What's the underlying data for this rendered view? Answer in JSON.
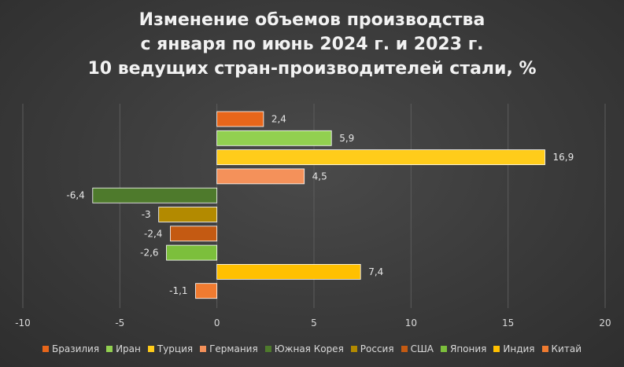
{
  "chart_data": {
    "type": "bar",
    "orientation": "horizontal",
    "title": [
      "Изменение объемов производства",
      "с января по июнь 2024 г. и 2023 г.",
      "10 ведущих стран-производителей стали, %"
    ],
    "xlabel": "",
    "ylabel": "",
    "xlim": [
      -10,
      20
    ],
    "xticks": [
      "-10",
      "-5",
      "0",
      "5",
      "10",
      "15",
      "20"
    ],
    "xtick_values": [
      -10,
      -5,
      0,
      5,
      10,
      15,
      20
    ],
    "grid": true,
    "legend_position": "bottom",
    "series": [
      {
        "name": "Бразилия",
        "value": 2.4,
        "label": "2,4",
        "color": "#e8661a"
      },
      {
        "name": "Иран",
        "value": 5.9,
        "label": "5,9",
        "color": "#92d050"
      },
      {
        "name": "Турция",
        "value": 16.9,
        "label": "16,9",
        "color": "#ffcc1a"
      },
      {
        "name": "Германия",
        "value": 4.5,
        "label": "4,5",
        "color": "#f4915a"
      },
      {
        "name": "Южная Корея",
        "value": -6.4,
        "label": "-6,4",
        "color": "#4e7a2c"
      },
      {
        "name": "Россия",
        "value": -3,
        "label": "-3",
        "color": "#b38a00"
      },
      {
        "name": "США",
        "value": -2.4,
        "label": "-2,4",
        "color": "#c45a12"
      },
      {
        "name": "Япония",
        "value": -2.6,
        "label": "-2,6",
        "color": "#7cbf3c"
      },
      {
        "name": "Индия",
        "value": 7.4,
        "label": "7,4",
        "color": "#ffc000"
      },
      {
        "name": "Китай",
        "value": -1.1,
        "label": "-1,1",
        "color": "#f07b30"
      }
    ]
  }
}
